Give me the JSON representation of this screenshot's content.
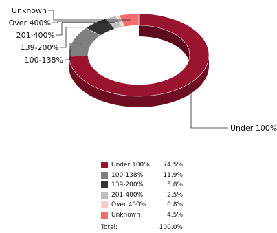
{
  "chart_data": {
    "type": "pie",
    "style": "3d-donut",
    "categories": [
      "Under 100%",
      "100-138%",
      "139-200%",
      "201-400%",
      "Over 400%",
      "Unknown"
    ],
    "values": [
      74.5,
      11.9,
      5.8,
      2.5,
      0.8,
      4.5
    ],
    "value_labels": [
      "74.5%",
      "11.9%",
      "5.8%",
      "2.5%",
      "0.8%",
      "4.5%"
    ],
    "colors": [
      "#9a1430",
      "#7f7f7f",
      "#333333",
      "#bfbfbf",
      "#f6cccc",
      "#f26d6d"
    ],
    "callout_labels": [
      "Under 100%",
      "100-138%",
      "139-200%",
      "201-400%",
      "Over 400%",
      "Unknown"
    ],
    "legend_placement": "bottom-center",
    "total_label": "Total:",
    "total_value": "100.0%"
  }
}
